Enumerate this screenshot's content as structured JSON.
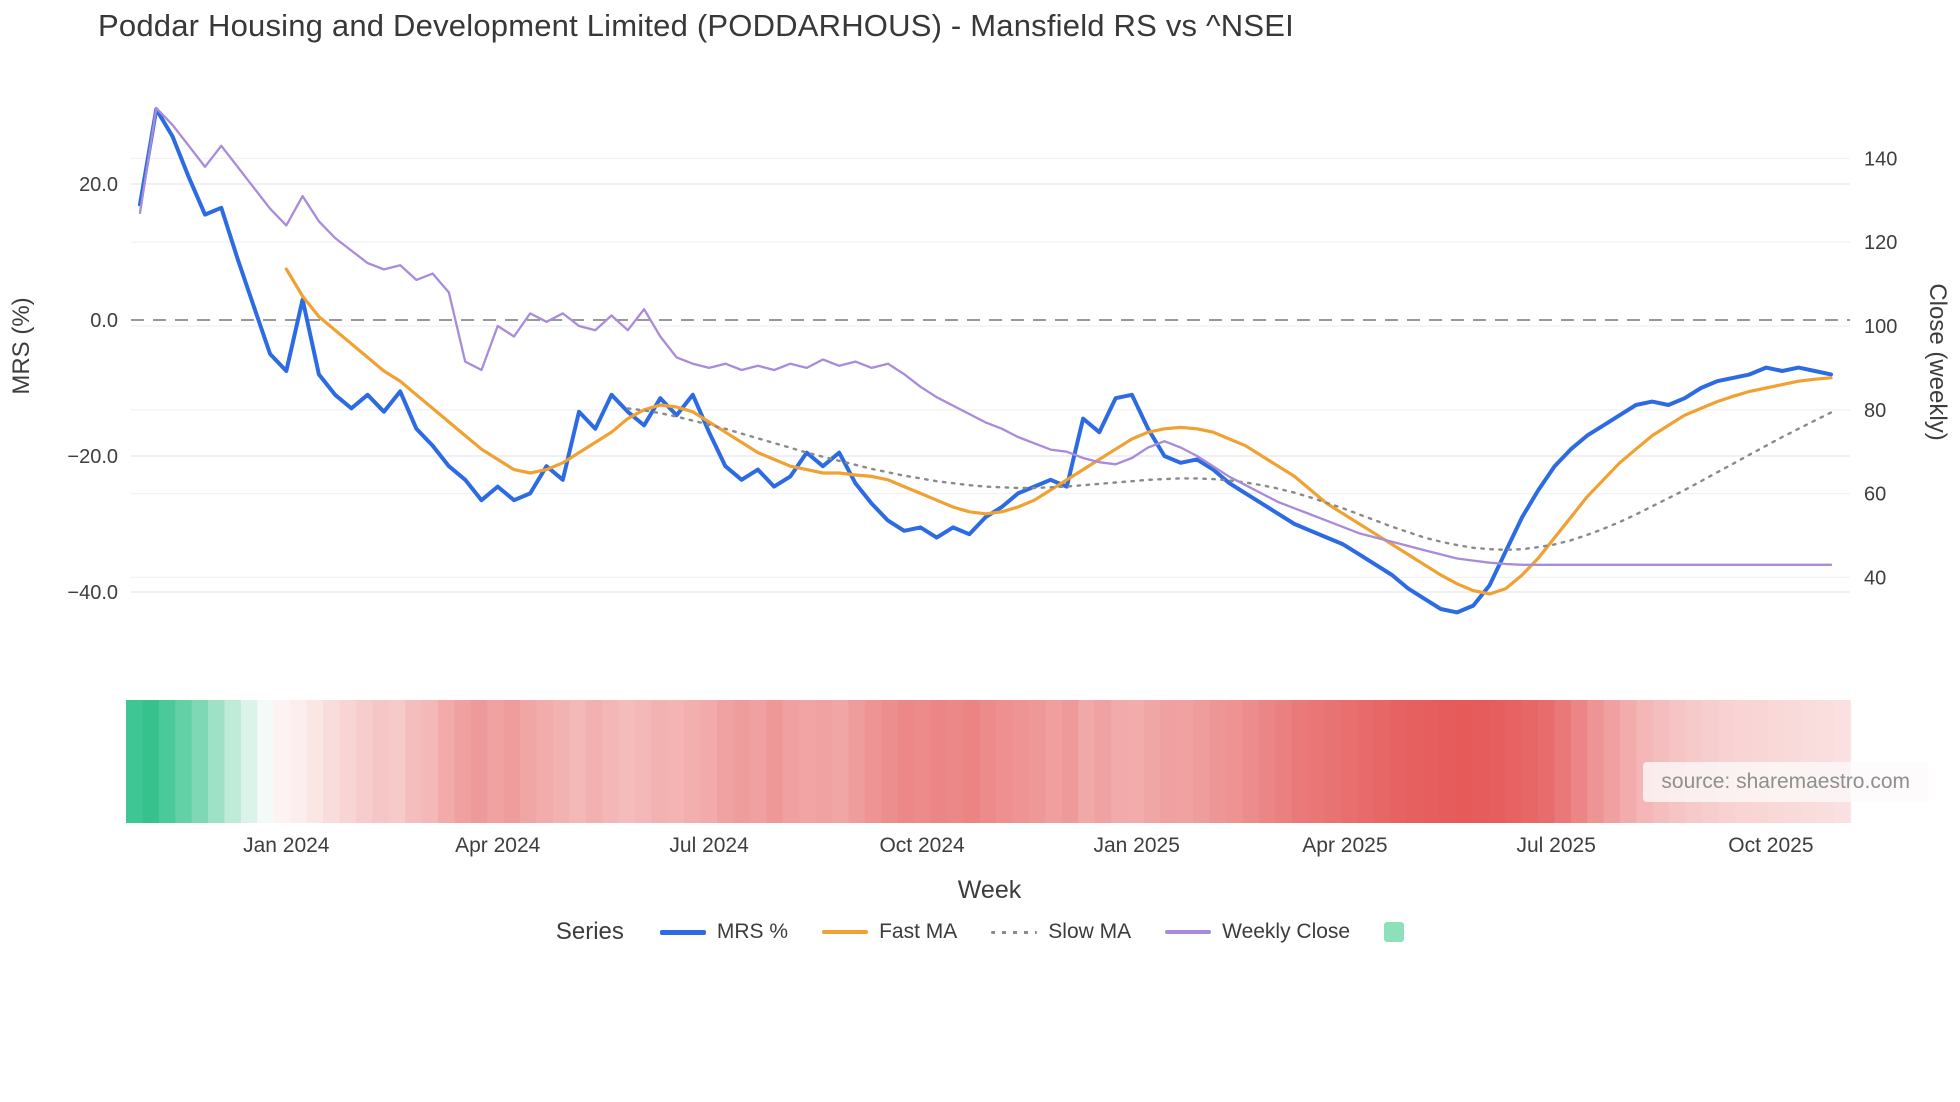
{
  "title": "Poddar Housing and Development Limited (PODDARHOUS) - Mansfield RS vs ^NSEI",
  "source": "source: sharemaestro.com",
  "axes": {
    "left_label": "MRS (%)",
    "right_label": "Close (weekly)",
    "x_label": "Week",
    "left_ticks": [
      {
        "v": 20,
        "label": "20.0"
      },
      {
        "v": 0,
        "label": "0.0"
      },
      {
        "v": -20,
        "label": "−20.0"
      },
      {
        "v": -40,
        "label": "−40.0"
      }
    ],
    "right_ticks": [
      {
        "v": 140,
        "label": "140"
      },
      {
        "v": 120,
        "label": "120"
      },
      {
        "v": 100,
        "label": "100"
      },
      {
        "v": 80,
        "label": "80"
      },
      {
        "v": 60,
        "label": "60"
      },
      {
        "v": 40,
        "label": "40"
      }
    ],
    "x_ticks": [
      {
        "week": 9.0,
        "label": "Jan 2024"
      },
      {
        "week": 22.0,
        "label": "Apr 2024"
      },
      {
        "week": 35.0,
        "label": "Jul 2024"
      },
      {
        "week": 48.1,
        "label": "Oct 2024"
      },
      {
        "week": 61.3,
        "label": "Jan 2025"
      },
      {
        "week": 74.1,
        "label": "Apr 2025"
      },
      {
        "week": 87.1,
        "label": "Jul 2025"
      },
      {
        "week": 100.3,
        "label": "Oct 2025"
      }
    ]
  },
  "legend": {
    "title": "Series",
    "items": [
      {
        "label": "MRS %",
        "color": "#2c6be3",
        "style": "line-thick"
      },
      {
        "label": "Fast MA",
        "color": "#f0a132",
        "style": "line"
      },
      {
        "label": "Slow MA",
        "color": "#8a8a8a",
        "style": "dotted"
      },
      {
        "label": "Weekly Close",
        "color": "#a98bdb",
        "style": "line"
      },
      {
        "label": "",
        "color": "#8ce0ba",
        "style": "square"
      }
    ]
  },
  "chart_data": {
    "type": "line",
    "x_unit": "week_index",
    "weeks_total": 105,
    "left_range": [
      -47,
      33
    ],
    "right_range": [
      33,
      153
    ],
    "zero_line": 0,
    "series": [
      {
        "name": "MRS %",
        "axis": "left",
        "color": "#2c6be3",
        "width": 4,
        "dash": null,
        "start_week": 0,
        "values": [
          17,
          31,
          27,
          21,
          15.5,
          16.5,
          9,
          2,
          -5,
          -7.5,
          3,
          -8,
          -11,
          -13,
          -11,
          -13.5,
          -10.5,
          -16,
          -18.5,
          -21.5,
          -23.5,
          -26.5,
          -24.5,
          -26.5,
          -25.5,
          -21.5,
          -23.5,
          -13.5,
          -16,
          -11,
          -13.5,
          -15.5,
          -11.5,
          -14,
          -11,
          -16.5,
          -21.5,
          -23.5,
          -22,
          -24.5,
          -23,
          -19.5,
          -21.5,
          -19.5,
          -24,
          -27,
          -29.5,
          -31,
          -30.5,
          -32,
          -30.5,
          -31.5,
          -29,
          -27.5,
          -25.5,
          -24.5,
          -23.5,
          -24.5,
          -14.5,
          -16.5,
          -11.5,
          -11,
          -16,
          -20,
          -21,
          -20.5,
          -22,
          -24,
          -25.5,
          -27,
          -28.5,
          -30,
          -31,
          -32,
          -33,
          -34.5,
          -36,
          -37.5,
          -39.5,
          -41,
          -42.5,
          -43,
          -42,
          -39,
          -34,
          -29,
          -25,
          -21.5,
          -19,
          -17,
          -15.5,
          -14,
          -12.5,
          -12,
          -12.5,
          -11.5,
          -10,
          -9,
          -8.5,
          -8,
          -7,
          -7.5,
          -7,
          -7.5,
          -8
        ]
      },
      {
        "name": "Fast MA",
        "axis": "left",
        "color": "#f0a132",
        "width": 3.2,
        "dash": null,
        "start_week": 9,
        "values": [
          7.5,
          3.5,
          0.5,
          -1.5,
          -3.5,
          -5.5,
          -7.5,
          -9,
          -11,
          -13,
          -15,
          -17,
          -19,
          -20.5,
          -22,
          -22.5,
          -22,
          -21,
          -19.5,
          -18,
          -16.5,
          -14.5,
          -13.2,
          -12.5,
          -12.8,
          -13.5,
          -15,
          -16.5,
          -18,
          -19.5,
          -20.5,
          -21.5,
          -22,
          -22.5,
          -22.5,
          -22.8,
          -23,
          -23.5,
          -24.5,
          -25.5,
          -26.5,
          -27.5,
          -28.2,
          -28.5,
          -28.2,
          -27.5,
          -26.5,
          -25,
          -23.5,
          -22,
          -20.5,
          -19,
          -17.5,
          -16.5,
          -16,
          -15.8,
          -16,
          -16.5,
          -17.5,
          -18.5,
          -20,
          -21.5,
          -23,
          -25,
          -27,
          -28.5,
          -30,
          -31.5,
          -33,
          -34.5,
          -36,
          -37.5,
          -38.8,
          -39.8,
          -40.3,
          -39.5,
          -37.5,
          -35,
          -32,
          -29,
          -26,
          -23.5,
          -21,
          -19,
          -17,
          -15.5,
          -14,
          -13,
          -12,
          -11.2,
          -10.5,
          -10,
          -9.5,
          -9,
          -8.7,
          -8.5
        ]
      },
      {
        "name": "Slow MA",
        "axis": "left",
        "color": "#8a8a8a",
        "width": 2.4,
        "dash": "2.5 6.5",
        "start_week": 30,
        "values": [
          -13,
          -13.3,
          -13.7,
          -14.2,
          -14.8,
          -15.4,
          -16,
          -16.7,
          -17.4,
          -18.1,
          -18.8,
          -19.5,
          -20.1,
          -20.7,
          -21.3,
          -21.9,
          -22.4,
          -22.9,
          -23.3,
          -23.7,
          -24,
          -24.3,
          -24.5,
          -24.6,
          -24.7,
          -24.7,
          -24.6,
          -24.5,
          -24.3,
          -24.1,
          -23.9,
          -23.7,
          -23.5,
          -23.4,
          -23.3,
          -23.3,
          -23.4,
          -23.6,
          -23.9,
          -24.3,
          -24.8,
          -25.4,
          -26.1,
          -26.9,
          -27.7,
          -28.6,
          -29.5,
          -30.4,
          -31.2,
          -32,
          -32.6,
          -33.1,
          -33.5,
          -33.7,
          -33.8,
          -33.7,
          -33.4,
          -33,
          -32.4,
          -31.6,
          -30.7,
          -29.7,
          -28.6,
          -27.4,
          -26.2,
          -25,
          -23.7,
          -22.4,
          -21.1,
          -19.8,
          -18.5,
          -17.2,
          -16,
          -14.8,
          -13.6
        ]
      },
      {
        "name": "Weekly Close",
        "axis": "right",
        "color": "#a98bdb",
        "width": 2.3,
        "dash": null,
        "start_week": 0,
        "values": [
          127,
          152,
          148,
          143,
          138,
          143,
          138,
          133,
          128,
          124,
          131,
          125,
          121,
          118,
          115,
          113.5,
          114.5,
          111,
          112.5,
          108,
          91.5,
          89.5,
          100,
          97.5,
          103,
          101,
          103,
          100,
          99,
          102.5,
          99,
          104,
          97.5,
          92.5,
          91,
          90,
          91,
          89.5,
          90.5,
          89.5,
          91,
          90,
          92,
          90.5,
          91.5,
          90,
          91,
          88.5,
          85.5,
          83,
          81,
          79,
          77,
          75.5,
          73.5,
          72,
          70.5,
          70,
          68.5,
          67.5,
          67,
          68.5,
          71,
          72.5,
          71,
          69,
          66.5,
          64,
          62,
          60,
          58,
          56.5,
          55,
          53.5,
          52,
          50.5,
          49.5,
          48.5,
          47.5,
          46.5,
          45.5,
          44.5,
          44,
          43.5,
          43.2,
          43,
          43,
          43,
          43,
          43,
          43,
          43,
          43,
          43,
          43,
          43,
          43,
          43,
          43,
          43,
          43,
          43,
          43,
          43,
          43
        ]
      }
    ],
    "heatmap": {
      "colors": [
        "#3ec795",
        "#36c18d",
        "#4cc99a",
        "#63d0a6",
        "#7fd8b5",
        "#9fe1c7",
        "#bfebd9",
        "#dcf3e9",
        "#f4faf7",
        "#fdf3f3",
        "#fceeee",
        "#fbe6e6",
        "#f9dcdc",
        "#f8d4d4",
        "#f7cccc",
        "#f6c6c6",
        "#f7caca",
        "#f5bebe",
        "#f4b8b8",
        "#f2aaaa",
        "#f0a0a0",
        "#ef9a9a",
        "#f0a2a2",
        "#ef9c9c",
        "#f1a6a6",
        "#f2acac",
        "#f3b2b2",
        "#f4b8b8",
        "#f3b0b0",
        "#f4b6b6",
        "#f5bcbc",
        "#f4b8b8",
        "#f3b2b2",
        "#f4b4b4",
        "#f3aeae",
        "#f2aaaa",
        "#f0a2a2",
        "#ef9c9c",
        "#f0a0a0",
        "#ef9898",
        "#f0a0a0",
        "#f1a4a4",
        "#f0a2a2",
        "#f1a6a6",
        "#ef9c9c",
        "#ee9494",
        "#ed8e8e",
        "#ec8888",
        "#ed8a8a",
        "#ec8686",
        "#ed8888",
        "#ec8484",
        "#ed8a8a",
        "#ee9090",
        "#ee9494",
        "#ef9898",
        "#f09e9e",
        "#ef9a9a",
        "#f1a8a8",
        "#f0a2a2",
        "#f2aaaa",
        "#f2acac",
        "#f1a6a6",
        "#f0a0a0",
        "#f0a2a2",
        "#ef9c9c",
        "#ee9696",
        "#ee9292",
        "#ed8c8c",
        "#ec8686",
        "#eb8080",
        "#ea7a7a",
        "#ea7676",
        "#e97272",
        "#e96e6e",
        "#e86a6a",
        "#e76666",
        "#e76262",
        "#e66060",
        "#e65e5e",
        "#e65c5c",
        "#e65a5a",
        "#e65c5c",
        "#e65e5e",
        "#e76262",
        "#e76666",
        "#e86c6c",
        "#ea7878",
        "#ec8686",
        "#ee9494",
        "#f0a0a0",
        "#f2acac",
        "#f4b6b6",
        "#f5bebe",
        "#f6c4c4",
        "#f7caca",
        "#f7cece",
        "#f8d2d2",
        "#f8d4d4",
        "#f8d6d6",
        "#f9d8d8",
        "#f9dada",
        "#f9dcdc",
        "#fadede",
        "#fae0e0"
      ]
    }
  }
}
